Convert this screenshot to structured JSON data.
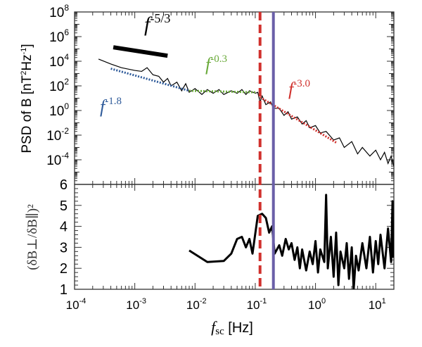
{
  "chart_data": [
    {
      "type": "line",
      "ylabel": "PSD of B [nT²Hz⁻¹]",
      "ylabel_parts": {
        "a": "PSD of B [nT",
        "b": "2",
        "c": "Hz",
        "d": "-1",
        "e": "]"
      },
      "xscale": "log",
      "yscale": "log",
      "xlim": [
        0.0001,
        20
      ],
      "ylim": [
        1e-06,
        100000000.0
      ],
      "yticks": [
        {
          "base": "10",
          "exp": "8",
          "v": 100000000.0
        },
        {
          "base": "10",
          "exp": "6",
          "v": 1000000.0
        },
        {
          "base": "10",
          "exp": "4",
          "v": 10000.0
        },
        {
          "base": "10",
          "exp": "2",
          "v": 100.0
        },
        {
          "base": "10",
          "exp": "0",
          "v": 1
        },
        {
          "base": "10",
          "exp": "-2",
          "v": 0.01
        },
        {
          "base": "10",
          "exp": "-4",
          "v": 0.0001
        }
      ],
      "series": [
        {
          "color": "#000000",
          "x": [
            0.00025,
            0.0004,
            0.0006,
            0.001,
            0.0013,
            0.0016,
            0.002,
            0.0025,
            0.003,
            0.0035,
            0.004,
            0.005,
            0.006,
            0.007,
            0.008,
            0.01,
            0.013,
            0.016,
            0.02,
            0.025,
            0.03,
            0.04,
            0.05,
            0.06,
            0.07,
            0.08,
            0.1,
            0.11,
            0.12,
            0.13,
            0.15,
            0.18,
            0.2,
            0.25,
            0.3,
            0.35,
            0.4,
            0.5,
            0.6,
            0.7,
            0.8,
            1,
            1.2,
            1.5,
            2,
            2.5,
            3,
            4,
            5,
            6,
            8,
            10,
            12,
            14,
            16,
            18,
            20
          ],
          "y": [
            15000,
            6000,
            3000,
            1800,
            1500,
            3000,
            800,
            600,
            200,
            400,
            100,
            200,
            40,
            150,
            30,
            60,
            20,
            50,
            25,
            50,
            20,
            40,
            25,
            50,
            20,
            40,
            25,
            30,
            5,
            15,
            3,
            5,
            1.5,
            1.5,
            0.4,
            0.8,
            0.2,
            0.3,
            0.08,
            0.15,
            0.04,
            0.06,
            0.015,
            0.02,
            0.004,
            0.006,
            0.001,
            0.003,
            0.0003,
            0.001,
            0.0002,
            0.0006,
            0.0001,
            0.0004,
            5e-05,
            0.0002,
            3e-05
          ]
        }
      ],
      "fits": [
        {
          "label_base": "f",
          "label_exp": "-1.8",
          "color": "#2f5b9a",
          "style": "dotted",
          "x": [
            0.0004,
            0.008
          ],
          "y": [
            2500,
            40
          ]
        },
        {
          "label_base": "f",
          "label_exp": "-0.3",
          "color": "#6aaa3a",
          "style": "dotted",
          "x": [
            0.008,
            0.1
          ],
          "y": [
            40,
            30
          ]
        },
        {
          "label_base": "f",
          "label_exp": "-3.0",
          "color": "#d0312d",
          "style": "dotted",
          "x": [
            0.12,
            2.2
          ],
          "y": [
            12,
            0.0025
          ]
        },
        {
          "label_base": "f",
          "label_exp": "-5/3",
          "color": "#000000",
          "style": "solid-thick",
          "x": [
            0.00044,
            0.0035
          ],
          "y": [
            135000,
            28000
          ]
        }
      ]
    },
    {
      "type": "line",
      "ylabel": "(δB⊥/δB∥)²",
      "ylabel_parts": {
        "a": "(δB",
        "b": "⊥",
        "c": "/δB",
        "d": "∥",
        "e": ")",
        "f": "2"
      },
      "xlabel_parts": {
        "a": "f",
        "b": "sc",
        "c": " [Hz]"
      },
      "xscale": "log",
      "xlim": [
        0.0001,
        20
      ],
      "ylim": [
        1,
        6
      ],
      "yticks": [
        "1",
        "2",
        "3",
        "4",
        "5",
        "6"
      ],
      "xticks": [
        {
          "base": "10",
          "exp": "-4",
          "v": 0.0001
        },
        {
          "base": "10",
          "exp": "-3",
          "v": 0.001
        },
        {
          "base": "10",
          "exp": "-2",
          "v": 0.01
        },
        {
          "base": "10",
          "exp": "-1",
          "v": 0.1
        },
        {
          "base": "10",
          "exp": "0",
          "v": 1
        },
        {
          "base": "10",
          "exp": "1",
          "v": 10
        }
      ],
      "series": [
        {
          "color": "#000000",
          "x": [
            0.008,
            0.016,
            0.03,
            0.04,
            0.05,
            0.06,
            0.07,
            0.08,
            0.09,
            0.11,
            0.13,
            0.15,
            0.17,
            0.19,
            0.21,
            0.25,
            0.28,
            0.32,
            0.36,
            0.4,
            0.45,
            0.5,
            0.55,
            0.6,
            0.7,
            0.8,
            0.9,
            1.0,
            1.1,
            1.2,
            1.4,
            1.5,
            1.6,
            1.8,
            2.0,
            2.2,
            2.4,
            2.6,
            3.0,
            3.3,
            3.6,
            4.0,
            4.3,
            4.7,
            5.2,
            6,
            7,
            8,
            9,
            10,
            11,
            12,
            14,
            16,
            18,
            19,
            19.5
          ],
          "y": [
            2.85,
            2.3,
            2.35,
            2.7,
            3.4,
            3.5,
            3.0,
            3.4,
            2.7,
            4.5,
            4.6,
            4.4,
            3.7,
            4.0,
            2.7,
            3.1,
            2.6,
            3.4,
            2.9,
            3.2,
            2.4,
            3.0,
            2.0,
            2.9,
            1.9,
            2.8,
            2.2,
            3.3,
            1.8,
            2.9,
            2.3,
            5.5,
            2.0,
            3.5,
            1.6,
            3.7,
            1.2,
            2.8,
            2.0,
            3.2,
            1.5,
            3.0,
            1.0,
            2.6,
            1.9,
            3.2,
            2.0,
            3.5,
            1.8,
            3.3,
            2.2,
            3.6,
            2.0,
            3.9,
            2.3,
            5.2,
            2.5
          ]
        }
      ]
    }
  ],
  "vlines": [
    {
      "x": 0.12,
      "color": "#d0312d",
      "style": "dashed"
    },
    {
      "x": 0.2,
      "color": "#6a5fa8",
      "style": "solid"
    }
  ]
}
